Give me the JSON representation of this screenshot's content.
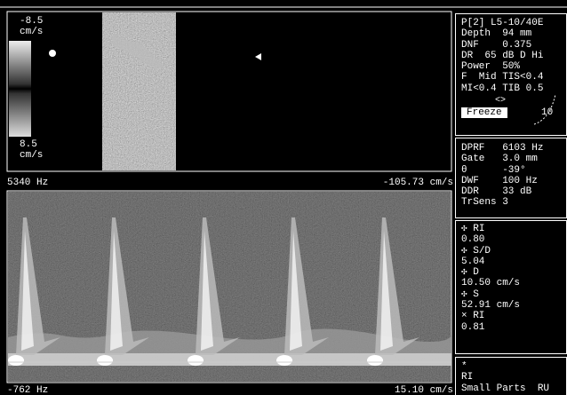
{
  "image_panel": {
    "scale_top": "-8.5",
    "scale_top_unit": "cm/s",
    "scale_bottom": "8.5",
    "scale_bottom_unit": "cm/s",
    "prf_label": "5340 Hz",
    "velocity_label": "-105.73 cm/s"
  },
  "spectrum": {
    "bottom_left": "-762 Hz",
    "bottom_right": "15.10 cm/s"
  },
  "settings": {
    "lines": [
      "P[2] L5-10/40E",
      "Depth  94 mm",
      "DNF    0.375",
      "DR  65 dB D Hi",
      "Power  50%",
      "F  Mid TIS<0.4",
      "MI<0.4 TIB 0.5"
    ],
    "arrows": "<>",
    "freeze": "Freeze",
    "gain": "10"
  },
  "doppler": {
    "lines": [
      "DPRF   6103 Hz",
      "Gate   3.0 mm",
      "θ      -39°",
      "DWF    100 Hz",
      "DDR    33 dB",
      "TrSens 3"
    ]
  },
  "measurements": {
    "lines": [
      "✣ RI",
      "0.80",
      "✣ S/D",
      "5.04",
      "✣ D",
      "10.50 cm/s",
      "✣ S",
      "52.91 cm/s",
      "× RI",
      "0.81"
    ]
  },
  "footer": {
    "lines": [
      "*",
      "RI",
      "Small Parts  RU"
    ]
  }
}
